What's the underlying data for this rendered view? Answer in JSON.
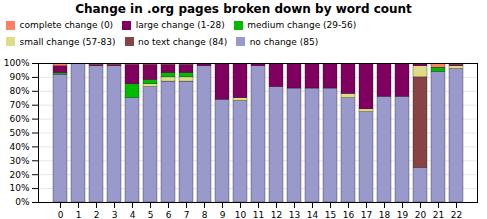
{
  "chart_data": {
    "type": "bar",
    "stacked": true,
    "title": "Change in .org pages broken down by word count",
    "categories": [
      0,
      1,
      2,
      3,
      4,
      5,
      6,
      7,
      8,
      9,
      10,
      11,
      12,
      13,
      14,
      15,
      16,
      17,
      18,
      19,
      20,
      21,
      22
    ],
    "series": [
      {
        "name": "no change (85)",
        "color": "#9999CC",
        "values": [
          92,
          100,
          98,
          98,
          75,
          83,
          87,
          87,
          98,
          74,
          73,
          98,
          83,
          82,
          82,
          82,
          75,
          65,
          76,
          76,
          25,
          94,
          96
        ]
      },
      {
        "name": "no text change (84)",
        "color": "#884444",
        "values": [
          0,
          0,
          0,
          0,
          0,
          0,
          0,
          0,
          0,
          0,
          0,
          0,
          0,
          0,
          0,
          0,
          0,
          0,
          0,
          0,
          65,
          0,
          0
        ]
      },
      {
        "name": "small change (57-83)",
        "color": "#DDDD88",
        "values": [
          0,
          0,
          0,
          0,
          0,
          2,
          3,
          3,
          0,
          0,
          2,
          0,
          0,
          0,
          0,
          0,
          3,
          2,
          0,
          0,
          8,
          0,
          2
        ]
      },
      {
        "name": "medium change (29-56)",
        "color": "#00BB00",
        "values": [
          1,
          0,
          0,
          0,
          10,
          3,
          3,
          3,
          0,
          0,
          0,
          0,
          0,
          0,
          0,
          0,
          0,
          0,
          0,
          0,
          0,
          3,
          0
        ]
      },
      {
        "name": "large change (1-28)",
        "color": "#800060",
        "values": [
          5,
          0,
          1,
          1,
          14,
          11,
          6,
          6,
          2,
          26,
          25,
          2,
          17,
          18,
          18,
          18,
          22,
          33,
          24,
          24,
          2,
          0,
          1
        ]
      },
      {
        "name": "complete change (0)",
        "color": "#FF8060",
        "values": [
          2,
          0,
          1,
          1,
          1,
          1,
          1,
          1,
          0,
          0,
          0,
          0,
          0,
          0,
          0,
          0,
          0,
          0,
          0,
          0,
          0,
          3,
          1
        ]
      }
    ],
    "ylim": [
      0,
      100
    ],
    "yticks": [
      {
        "value": 0,
        "label": "0%"
      },
      {
        "value": 10,
        "label": "10%"
      },
      {
        "value": 20,
        "label": "20%"
      },
      {
        "value": 30,
        "label": "30%"
      },
      {
        "value": 40,
        "label": "40%"
      },
      {
        "value": 50,
        "label": "50%"
      },
      {
        "value": 60,
        "label": "60%"
      },
      {
        "value": 70,
        "label": "70%"
      },
      {
        "value": 80,
        "label": "80%"
      },
      {
        "value": 90,
        "label": "90%"
      },
      {
        "value": 100,
        "label": "100%"
      }
    ],
    "grid": true,
    "legend": "upper left"
  }
}
